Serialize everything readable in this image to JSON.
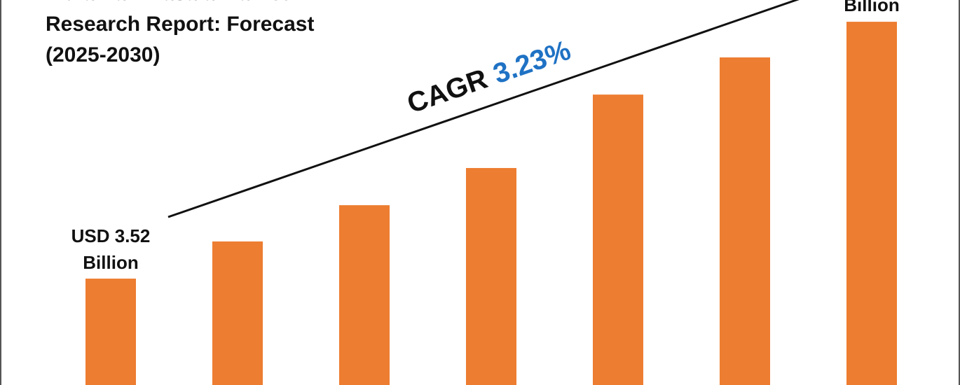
{
  "chart_data": {
    "type": "bar",
    "title": [
      "India Pan Masala Market",
      "Research Report: Forecast",
      "(2025-2030)"
    ],
    "values": [
      3.52,
      4.75,
      5.95,
      7.18,
      9.61,
      10.84,
      12.02
    ],
    "value_labels": [
      "USD 3.52 Billion",
      null,
      null,
      null,
      null,
      null,
      null
    ],
    "annotations": {
      "end_label": "Billion",
      "cagr_label": "CAGR",
      "cagr_value": "3.23%"
    },
    "color": "#ed7d31",
    "cagr_color": "#1f72c4",
    "ylim": [
      0,
      12.74
    ]
  }
}
